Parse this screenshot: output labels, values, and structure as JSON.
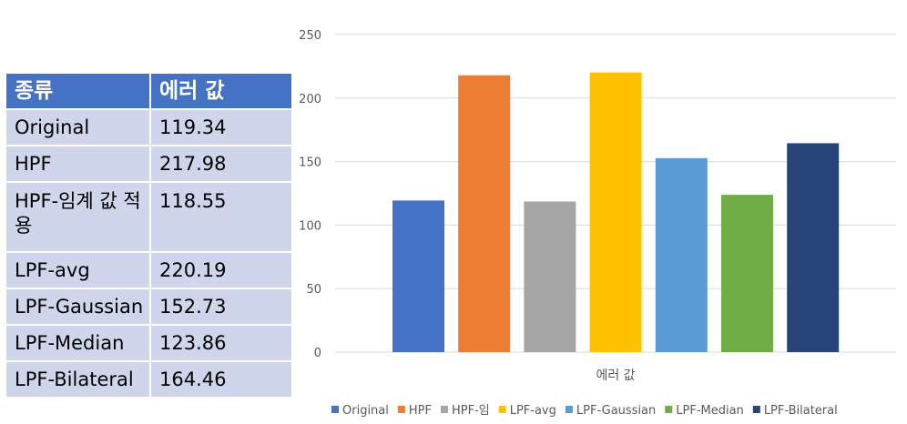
{
  "table": {
    "headers": [
      "종류",
      "에러 값"
    ],
    "rows": [
      [
        "Original",
        "119.34"
      ],
      [
        "HPF",
        "217.98"
      ],
      [
        "HPF-임계 값 적용",
        "118.55"
      ],
      [
        "LPF-avg",
        "220.19"
      ],
      [
        "LPF-Gaussian",
        "152.73"
      ],
      [
        "LPF-Median",
        "123.86"
      ],
      [
        "LPF-Bilateral",
        "164.46"
      ]
    ]
  },
  "chart_data": {
    "type": "bar",
    "xlabel": "에러 값",
    "ylim": [
      0,
      250
    ],
    "yticks": [
      0,
      50,
      100,
      150,
      200,
      250
    ],
    "grid": true,
    "legend_position": "bottom",
    "series": [
      {
        "name": "Original",
        "value": 119.34,
        "color": "#4472c4"
      },
      {
        "name": "HPF",
        "value": 217.98,
        "color": "#ed7d31"
      },
      {
        "name": "HPF-임",
        "value": 118.55,
        "color": "#a5a5a5"
      },
      {
        "name": "LPF-avg",
        "value": 220.19,
        "color": "#ffc000"
      },
      {
        "name": "LPF-Gaussian",
        "value": 152.73,
        "color": "#5b9bd5"
      },
      {
        "name": "LPF-Median",
        "value": 123.86,
        "color": "#70ad47"
      },
      {
        "name": "LPF-Bilateral",
        "value": 164.46,
        "color": "#264478"
      }
    ]
  }
}
